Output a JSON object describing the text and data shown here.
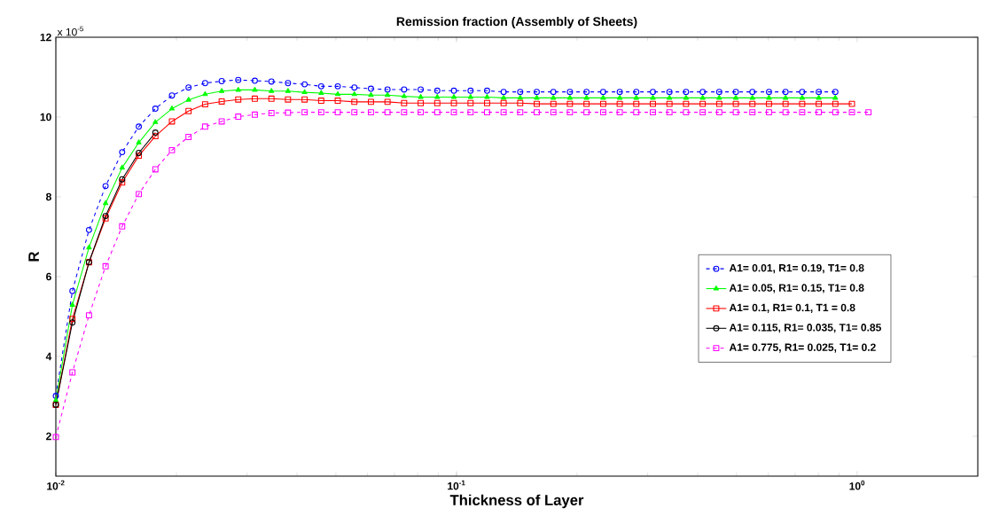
{
  "chart_data": {
    "type": "line",
    "title": "Remission fraction (Assembly of Sheets)",
    "xlabel": "Thickness of Layer",
    "ylabel": "R",
    "annotations": [
      "x 10$^{-5}$"
    ],
    "log": "x",
    "grid": false,
    "legend": "right",
    "xlim": [
      0.01,
      2
    ],
    "ylim": [
      1,
      12
    ],
    "xticks": [
      {
        "value": 0.01,
        "label": "10$^{-2}$"
      },
      {
        "value": 0.1,
        "label": "10$^{-1}$"
      },
      {
        "value": 1,
        "label": "10$^{0}$"
      }
    ],
    "yticks": [
      2,
      4,
      6,
      8,
      10,
      12
    ],
    "x": [
      0.01,
      0.011,
      0.0121,
      0.01331,
      0.01464,
      0.01611,
      0.01772,
      0.01949,
      0.02144,
      0.02358,
      0.02594,
      0.02853,
      0.03138,
      0.03452,
      0.03797,
      0.04177,
      0.04595,
      0.05054,
      0.0556,
      0.06116,
      0.06727,
      0.074,
      0.0814,
      0.08954,
      0.0985,
      0.1084,
      0.1192,
      0.1311,
      0.1442,
      0.1586,
      0.1745,
      0.1919,
      0.2111,
      0.2323,
      0.2555,
      0.281,
      0.3091,
      0.34,
      0.374,
      0.4115,
      0.4526,
      0.4979,
      0.5476,
      0.6024,
      0.6626,
      0.7289,
      0.8018,
      0.882,
      0.9702,
      1.067
    ],
    "series": [
      {
        "name": "A1= 0.01, R1= 0.19, T1= 0.8",
        "color": "#0000ff",
        "marker": "circle",
        "line_style": "dashed",
        "values": [
          3.01,
          5.64,
          7.17,
          8.27,
          9.12,
          9.76,
          10.21,
          10.54,
          10.74,
          10.85,
          10.9,
          10.93,
          10.91,
          10.89,
          10.85,
          10.82,
          10.77,
          10.77,
          10.74,
          10.71,
          10.69,
          10.69,
          10.69,
          10.66,
          10.66,
          10.66,
          10.66,
          10.63,
          10.63,
          10.63,
          10.63,
          10.63,
          10.63,
          10.63,
          10.63,
          10.63,
          10.63,
          10.63,
          10.63,
          10.63,
          10.63,
          10.63,
          10.63,
          10.63,
          10.63,
          10.63,
          10.63,
          10.63,
          null,
          null
        ]
      },
      {
        "name": "A1= 0.05, R1= 0.15, T1= 0.8",
        "color": "#00ff00",
        "marker": "triangle",
        "line_style": "solid",
        "values": [
          2.9,
          5.29,
          6.73,
          7.84,
          8.73,
          9.36,
          9.87,
          10.21,
          10.43,
          10.57,
          10.65,
          10.68,
          10.68,
          10.65,
          10.65,
          10.62,
          10.6,
          10.57,
          10.57,
          10.55,
          10.55,
          10.52,
          10.5,
          10.5,
          10.5,
          10.5,
          10.5,
          10.48,
          10.48,
          10.48,
          10.48,
          10.48,
          10.48,
          10.48,
          10.48,
          10.48,
          10.48,
          10.48,
          10.48,
          10.48,
          10.48,
          10.48,
          10.48,
          10.48,
          10.48,
          10.48,
          10.48,
          10.48,
          null,
          null
        ]
      },
      {
        "name": "A1= 0.1, R1= 0.1, T1 = 0.8",
        "color": "#ff0000",
        "marker": "square",
        "line_style": "solid",
        "values": [
          2.79,
          4.94,
          6.36,
          7.46,
          8.36,
          9.03,
          9.52,
          9.89,
          10.15,
          10.32,
          10.39,
          10.44,
          10.46,
          10.46,
          10.44,
          10.44,
          10.41,
          10.41,
          10.38,
          10.38,
          10.38,
          10.35,
          10.35,
          10.35,
          10.35,
          10.35,
          10.35,
          10.35,
          10.35,
          10.33,
          10.33,
          10.33,
          10.33,
          10.33,
          10.33,
          10.33,
          10.33,
          10.33,
          10.33,
          10.33,
          10.33,
          10.33,
          10.33,
          10.33,
          10.33,
          10.33,
          10.33,
          10.33,
          10.33,
          null
        ]
      },
      {
        "name": "A1= 0.115, R1= 0.035, T1= 0.85",
        "color": "#000000",
        "marker": "circle",
        "line_style": "solid",
        "values": [
          2.79,
          4.85,
          6.36,
          7.52,
          8.44,
          9.1,
          9.61,
          null,
          null,
          null,
          null,
          null,
          null,
          null,
          null,
          null,
          null,
          null,
          null,
          null,
          null,
          null,
          null,
          null,
          null,
          null,
          null,
          null,
          null,
          null,
          null,
          null,
          null,
          null,
          null,
          null,
          null,
          null,
          null,
          null,
          null,
          null,
          null,
          null,
          null,
          null,
          null,
          null,
          null,
          null
        ]
      },
      {
        "name": "A1= 0.775, R1= 0.025, T1= 0.2",
        "color": "#ff00ff",
        "marker": "square",
        "line_style": "dashed",
        "values": [
          1.98,
          3.6,
          5.03,
          6.26,
          7.26,
          8.07,
          8.69,
          9.17,
          9.5,
          9.76,
          9.89,
          10.01,
          10.06,
          10.1,
          10.11,
          10.12,
          10.12,
          10.12,
          10.12,
          10.12,
          10.12,
          10.12,
          10.12,
          10.12,
          10.12,
          10.12,
          10.12,
          10.12,
          10.12,
          10.12,
          10.12,
          10.12,
          10.12,
          10.12,
          10.12,
          10.12,
          10.12,
          10.12,
          10.12,
          10.12,
          10.12,
          10.12,
          10.12,
          10.12,
          10.12,
          10.12,
          10.12,
          10.12,
          10.12,
          10.12
        ]
      }
    ]
  }
}
